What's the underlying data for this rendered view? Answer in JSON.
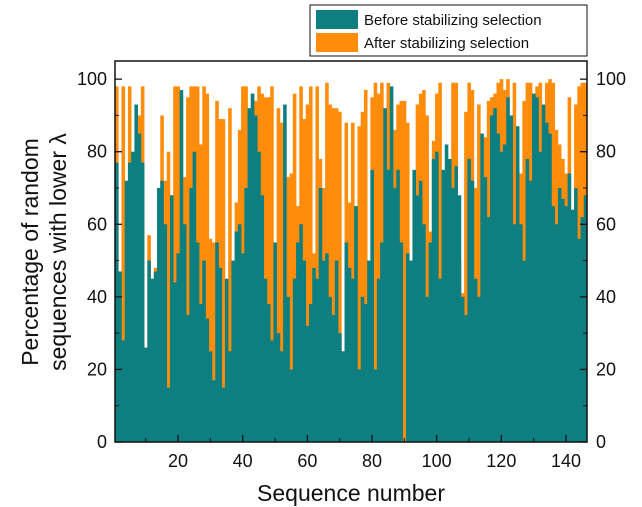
{
  "chart_data": {
    "type": "bar",
    "stacking": "overlay",
    "x_count": 146,
    "xlabel": "Sequence number",
    "ylabel_line1": "Percentage of random",
    "ylabel_line2": "sequences with lower λ",
    "xlim": [
      0.5,
      146.5
    ],
    "ylim": [
      0,
      105
    ],
    "xticks": [
      "20",
      "40",
      "60",
      "80",
      "100",
      "120",
      "140"
    ],
    "yticks": [
      "0",
      "20",
      "40",
      "60",
      "80",
      "100"
    ],
    "grid": false,
    "legend_position": "top-right",
    "colors": {
      "before": "#0e7f80",
      "after": "#ff8c0a"
    },
    "series": [
      {
        "name": "Before stabilizing selection",
        "values": [
          77,
          47,
          28,
          72,
          77,
          80,
          93,
          85,
          77,
          26,
          50,
          45,
          47,
          70,
          72,
          60,
          15,
          68,
          44,
          52,
          97,
          60,
          35,
          70,
          80,
          55,
          38,
          50,
          34,
          25,
          17,
          55,
          48,
          15,
          45,
          25,
          50,
          58,
          60,
          52,
          70,
          92,
          96,
          90,
          80,
          68,
          45,
          38,
          28,
          55,
          30,
          25,
          93,
          40,
          20,
          45,
          55,
          60,
          50,
          32,
          38,
          48,
          45,
          70,
          50,
          52,
          40,
          35,
          50,
          30,
          25,
          55,
          48,
          45,
          65,
          20,
          40,
          38,
          50,
          75,
          20,
          45,
          55,
          92,
          75,
          98,
          70,
          75,
          55,
          0,
          52,
          50,
          75,
          68,
          72,
          60,
          40,
          55,
          78,
          80,
          45,
          75,
          82,
          78,
          70,
          76,
          68,
          40,
          35,
          78,
          72,
          45,
          40,
          85,
          73,
          62,
          90,
          92,
          85,
          80,
          82,
          95,
          90,
          60,
          87,
          60,
          50,
          78,
          72,
          96,
          95,
          80,
          93,
          88,
          85,
          65,
          60,
          70,
          67,
          65,
          74,
          64,
          70,
          56,
          62,
          68
        ]
      },
      {
        "name": "After stabilizing selection",
        "values": [
          98,
          47,
          98,
          20,
          98,
          72,
          80,
          90,
          98,
          26,
          57,
          11,
          48,
          70,
          90,
          72,
          80,
          12,
          98,
          98,
          95,
          73,
          95,
          98,
          98,
          98,
          82,
          98,
          96,
          56,
          55,
          94,
          89,
          89,
          13,
          92,
          38,
          66,
          86,
          98,
          98,
          10,
          96,
          94,
          98,
          96,
          95,
          95,
          98,
          23,
          92,
          88,
          69,
          73,
          74,
          96,
          65,
          98,
          89,
          93,
          98,
          52,
          98,
          78,
          70,
          99,
          93,
          92,
          92,
          91,
          14,
          88,
          66,
          88,
          65,
          87,
          91,
          97,
          29,
          95,
          99,
          96,
          99,
          12,
          99,
          96,
          86,
          93,
          94,
          94,
          88,
          33,
          18,
          93,
          96,
          97,
          90,
          58,
          83,
          96,
          99,
          40,
          42,
          68,
          99,
          99,
          50,
          41,
          91,
          99,
          97,
          70,
          93,
          47,
          84,
          94,
          95,
          96,
          99,
          100,
          97,
          100,
          74,
          99,
          87,
          74,
          94,
          99,
          99,
          96,
          98,
          99,
          88,
          99,
          100,
          99,
          86,
          82,
          78,
          74,
          95,
          64,
          93,
          98,
          99,
          99
        ]
      }
    ]
  }
}
